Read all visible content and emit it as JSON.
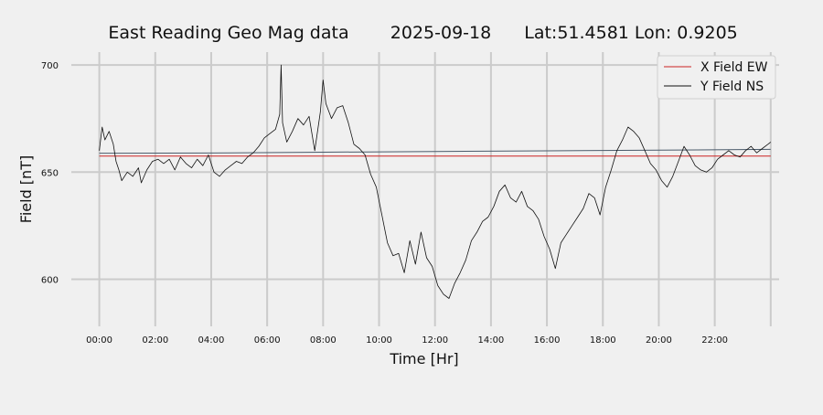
{
  "chart_data": {
    "type": "line",
    "title": {
      "station": "East Reading Geo Mag data",
      "date": "2025-09-18",
      "location": "Lat:51.4581  Lon: 0.9205"
    },
    "xlabel": "Time  [Hr]",
    "ylabel": "Field  [nT]",
    "x_unit": "hours",
    "xlim": [
      -1.0,
      24.3
    ],
    "ylim": [
      578,
      706
    ],
    "grid": true,
    "legend_position": "upper-right",
    "x_ticks": [
      {
        "value": 0,
        "label": "00:00"
      },
      {
        "value": 2,
        "label": "02:00"
      },
      {
        "value": 4,
        "label": "04:00"
      },
      {
        "value": 6,
        "label": "06:00"
      },
      {
        "value": 8,
        "label": "08:00"
      },
      {
        "value": 10,
        "label": "10:00"
      },
      {
        "value": 12,
        "label": "12:00"
      },
      {
        "value": 14,
        "label": "14:00"
      },
      {
        "value": 16,
        "label": "16:00"
      },
      {
        "value": 18,
        "label": "18:00"
      },
      {
        "value": 20,
        "label": "20:00"
      },
      {
        "value": 22,
        "label": "22:00"
      }
    ],
    "x_gridlines": [
      0,
      2,
      4,
      6,
      8,
      10,
      12,
      14,
      16,
      18,
      20,
      22,
      24
    ],
    "y_ticks": [
      {
        "value": 600,
        "label": "600"
      },
      {
        "value": 650,
        "label": "650"
      },
      {
        "value": 700,
        "label": "700"
      }
    ],
    "series": [
      {
        "name": "X Field EW",
        "color": "#cc2222",
        "x": [
          0,
          24
        ],
        "y": [
          657.5,
          657.5
        ]
      },
      {
        "name": "Y Field NS",
        "color": "#111111",
        "x": [
          0,
          0.1,
          0.2,
          0.35,
          0.5,
          0.6,
          0.7,
          0.8,
          1.0,
          1.2,
          1.4,
          1.5,
          1.7,
          1.9,
          2.1,
          2.3,
          2.5,
          2.7,
          2.9,
          3.1,
          3.3,
          3.5,
          3.7,
          3.9,
          4.1,
          4.3,
          4.5,
          4.7,
          4.9,
          5.1,
          5.3,
          5.5,
          5.7,
          5.9,
          6.1,
          6.3,
          6.45,
          6.5,
          6.55,
          6.7,
          6.9,
          7.1,
          7.3,
          7.5,
          7.7,
          7.9,
          8.0,
          8.1,
          8.3,
          8.5,
          8.7,
          8.9,
          9.1,
          9.3,
          9.5,
          9.7,
          9.9,
          10.1,
          10.3,
          10.5,
          10.7,
          10.9,
          11.1,
          11.3,
          11.5,
          11.7,
          11.9,
          12.1,
          12.3,
          12.5,
          12.7,
          12.9,
          13.1,
          13.3,
          13.5,
          13.7,
          13.9,
          14.1,
          14.3,
          14.5,
          14.7,
          14.9,
          15.1,
          15.3,
          15.5,
          15.7,
          15.9,
          16.1,
          16.3,
          16.5,
          16.7,
          16.9,
          17.1,
          17.3,
          17.5,
          17.7,
          17.9,
          18.1,
          18.3,
          18.5,
          18.7,
          18.9,
          19.1,
          19.3,
          19.5,
          19.7,
          19.9,
          20.1,
          20.3,
          20.5,
          20.7,
          20.9,
          21.1,
          21.3,
          21.5,
          21.7,
          21.9,
          22.1,
          22.3,
          22.5,
          22.7,
          22.9,
          23.1,
          23.3,
          23.5,
          23.7,
          23.9,
          24.0
        ],
        "y": [
          660,
          671,
          665,
          669,
          663,
          655,
          651,
          646,
          650,
          648,
          652,
          645,
          651,
          655,
          656,
          654,
          656,
          651,
          657,
          654,
          652,
          656,
          653,
          658,
          650,
          648,
          651,
          653,
          655,
          654,
          657,
          659,
          662,
          666,
          668,
          670,
          677,
          700,
          673,
          664,
          669,
          675,
          672,
          676,
          660,
          678,
          693,
          682,
          675,
          680,
          681,
          673,
          663,
          661,
          658,
          649,
          643,
          630,
          617,
          611,
          612,
          603,
          618,
          607,
          622,
          610,
          606,
          597,
          593,
          591,
          598,
          603,
          609,
          618,
          622,
          627,
          629,
          634,
          641,
          644,
          638,
          636,
          641,
          634,
          632,
          628,
          620,
          614,
          605,
          617,
          621,
          625,
          629,
          633,
          640,
          638,
          630,
          643,
          651,
          660,
          665,
          671,
          669,
          666,
          660,
          654,
          651,
          646,
          643,
          648,
          655,
          662,
          658,
          653,
          651,
          650,
          652,
          656,
          658,
          660,
          658,
          657,
          660,
          662,
          659,
          661,
          663,
          664
        ]
      },
      {
        "name": "",
        "color": "#4a5a6a",
        "x": [
          0,
          4,
          8,
          12,
          16,
          20,
          24
        ],
        "y": [
          658.8,
          658.9,
          659.3,
          659.6,
          659.9,
          660.2,
          660.6
        ]
      }
    ]
  }
}
